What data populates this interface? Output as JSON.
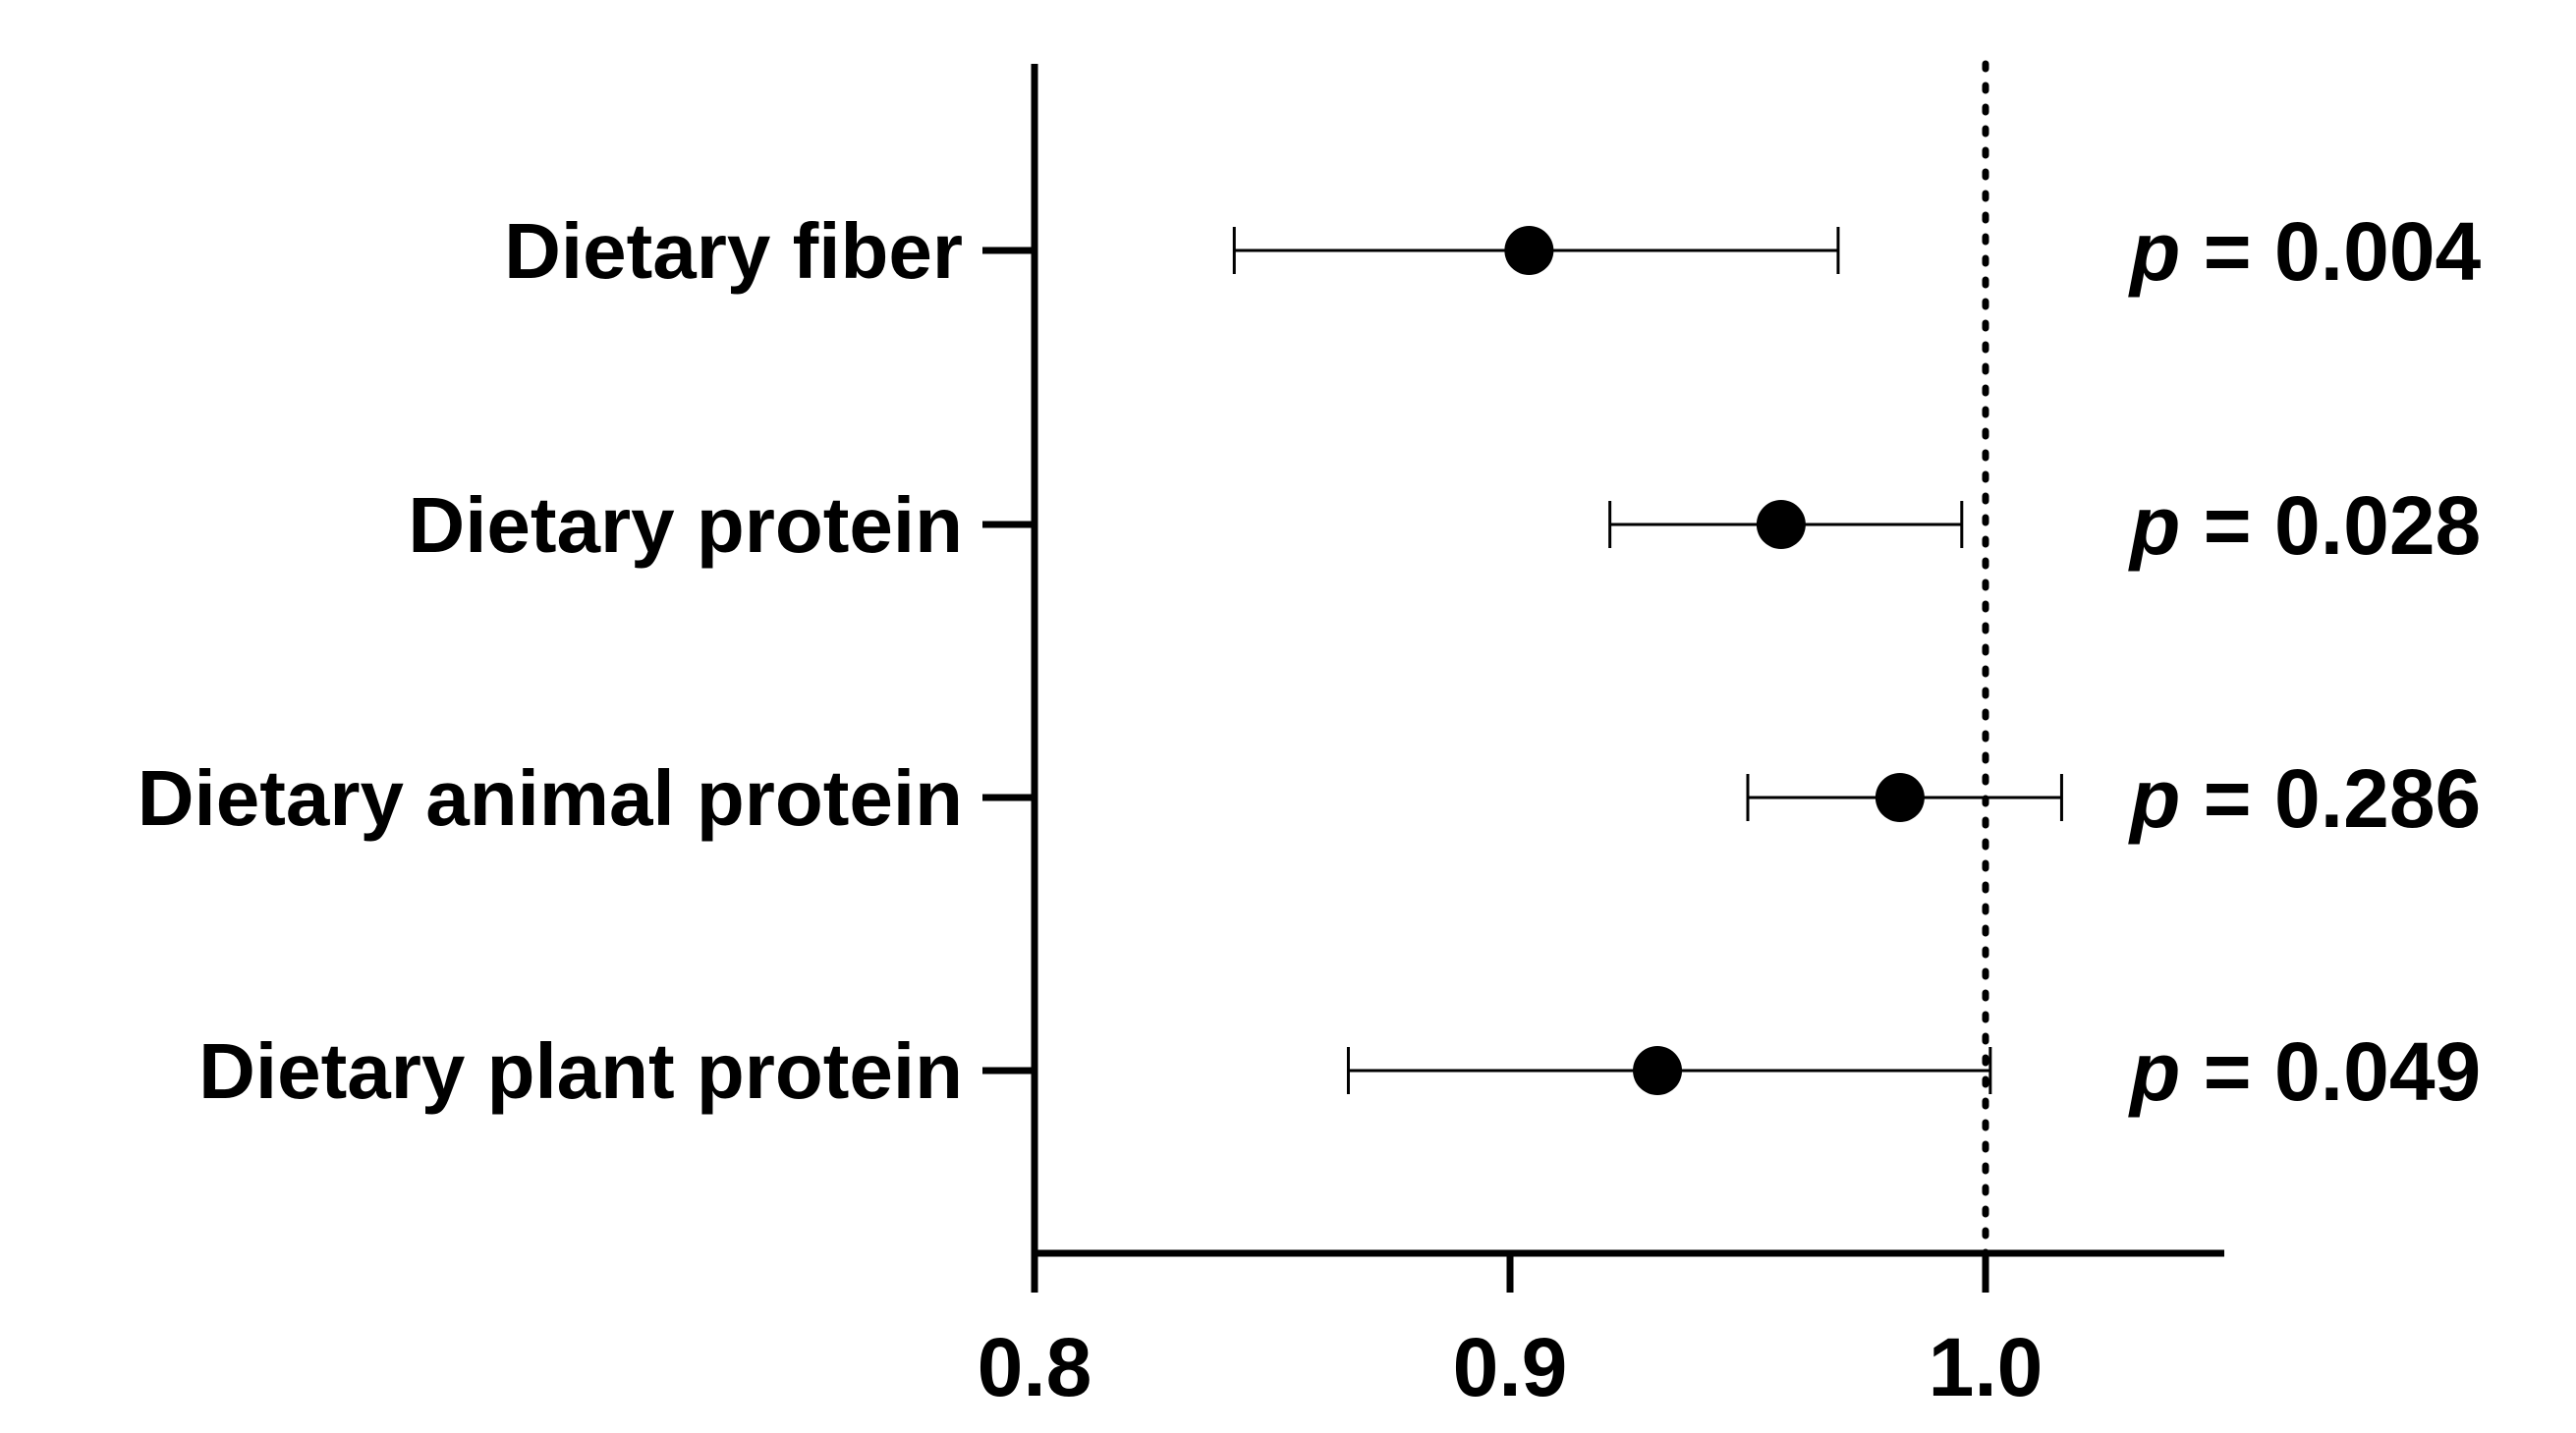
{
  "chart_data": {
    "type": "forest",
    "categories": [
      "Dietary fiber",
      "Dietary protein",
      "Dietary animal protein",
      "Dietary plant protein"
    ],
    "estimates": [
      0.904,
      0.957,
      0.982,
      0.931
    ],
    "ci_lower": [
      0.842,
      0.921,
      0.95,
      0.866
    ],
    "ci_upper": [
      0.969,
      0.995,
      1.016,
      1.001
    ],
    "p_values": [
      {
        "symbol": "p",
        "text": " = 0.004"
      },
      {
        "symbol": "p",
        "text": " = 0.028"
      },
      {
        "symbol": "p",
        "text": " = 0.286"
      },
      {
        "symbol": "p",
        "text": " = 0.049"
      }
    ],
    "xticks": [
      "0.8",
      "0.9",
      "1.0"
    ],
    "xtick_values": [
      0.8,
      0.9,
      1.0
    ],
    "xlim": [
      0.8,
      1.05
    ],
    "reference_line": 1.0,
    "title": "",
    "xlabel": "",
    "ylabel": ""
  }
}
